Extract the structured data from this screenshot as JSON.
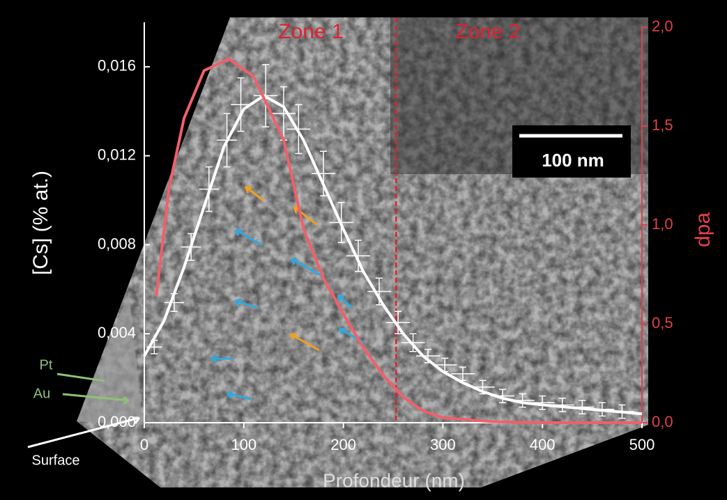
{
  "chart_data": {
    "type": "errorbar",
    "y_label": "[Cs] (% at.)",
    "y2_label": "dpa",
    "x_label": "Profondeur (nm)",
    "xlim": [
      0,
      500
    ],
    "xticks": [
      0,
      100,
      200,
      300,
      400,
      500
    ],
    "ylim": [
      0,
      0.018
    ],
    "yticks": [
      {
        "value": 0,
        "label": "0,000"
      },
      {
        "value": 0.004,
        "label": "0,004"
      },
      {
        "value": 0.008,
        "label": "0,008"
      },
      {
        "value": 0.012,
        "label": "0,012"
      },
      {
        "value": 0.016,
        "label": "0,016"
      }
    ],
    "y2lim": [
      0,
      2
    ],
    "y2ticks": [
      {
        "value": 0,
        "label": "0,0"
      },
      {
        "value": 0.5,
        "label": "0,5"
      },
      {
        "value": 1,
        "label": "1,0"
      },
      {
        "value": 1.5,
        "label": "1,5"
      },
      {
        "value": 2,
        "label": "2,0"
      }
    ],
    "series": [
      {
        "kind": "points",
        "color": "#ffffff",
        "x": [
          10,
          30,
          47,
          65,
          83,
          97,
          122,
          140,
          155,
          180,
          198,
          215,
          236,
          255,
          270,
          285,
          302,
          320,
          340,
          360,
          380,
          400,
          420,
          440,
          460,
          480
        ],
        "values": [
          0.0034,
          0.0054,
          0.0079,
          0.0105,
          0.0127,
          0.0143,
          0.0147,
          0.0139,
          0.0132,
          0.0112,
          0.009,
          0.0075,
          0.0059,
          0.0045,
          0.0036,
          0.003,
          0.0026,
          0.0022,
          0.0016,
          0.0012,
          0.001,
          0.0009,
          0.0008,
          0.0007,
          0.0006,
          0.0005
        ],
        "xerr": [
          8,
          10,
          10,
          10,
          10,
          10,
          12,
          12,
          12,
          12,
          12,
          12,
          12,
          12,
          12,
          12,
          12,
          12,
          12,
          12,
          12,
          12,
          12,
          12,
          12,
          12
        ],
        "yerr": [
          0.0003,
          0.0004,
          0.0006,
          0.001,
          0.0012,
          0.0012,
          0.0014,
          0.0012,
          0.0011,
          0.001,
          0.0009,
          0.0007,
          0.0006,
          0.0005,
          0.0004,
          0.0003,
          0.0003,
          0.0003,
          0.0003,
          0.0003,
          0.0003,
          0.0003,
          0.0003,
          0.0003,
          0.0003,
          0.0003
        ]
      },
      {
        "kind": "fit",
        "color": "#ffffff",
        "x": [
          0,
          20,
          40,
          60,
          80,
          100,
          120,
          140,
          160,
          180,
          200,
          220,
          240,
          260,
          280,
          300,
          320,
          340,
          360,
          380,
          400,
          450,
          500
        ],
        "values": [
          0.003,
          0.0046,
          0.007,
          0.0097,
          0.0124,
          0.0141,
          0.0147,
          0.0142,
          0.0127,
          0.0107,
          0.0087,
          0.0068,
          0.0053,
          0.004,
          0.003,
          0.0023,
          0.0018,
          0.0014,
          0.0011,
          0.0009,
          0.0008,
          0.0006,
          0.0004
        ]
      },
      {
        "kind": "line",
        "axis": "y2",
        "color": "#f0606a",
        "x": [
          12,
          25,
          40,
          60,
          85,
          110,
          140,
          160,
          180,
          200,
          220,
          240,
          260,
          280,
          300,
          350,
          400,
          500
        ],
        "values": [
          0.64,
          1.19,
          1.54,
          1.78,
          1.84,
          1.75,
          1.43,
          0.98,
          0.73,
          0.55,
          0.38,
          0.24,
          0.13,
          0.06,
          0.025,
          0.005,
          0,
          0
        ]
      }
    ],
    "zone_boundary": 253,
    "zones": [
      "Zone 1",
      "Zone 2"
    ],
    "scale_bar": "100 nm",
    "labels": {
      "pt": "Pt",
      "au": "Au",
      "surface": "Surface"
    }
  }
}
